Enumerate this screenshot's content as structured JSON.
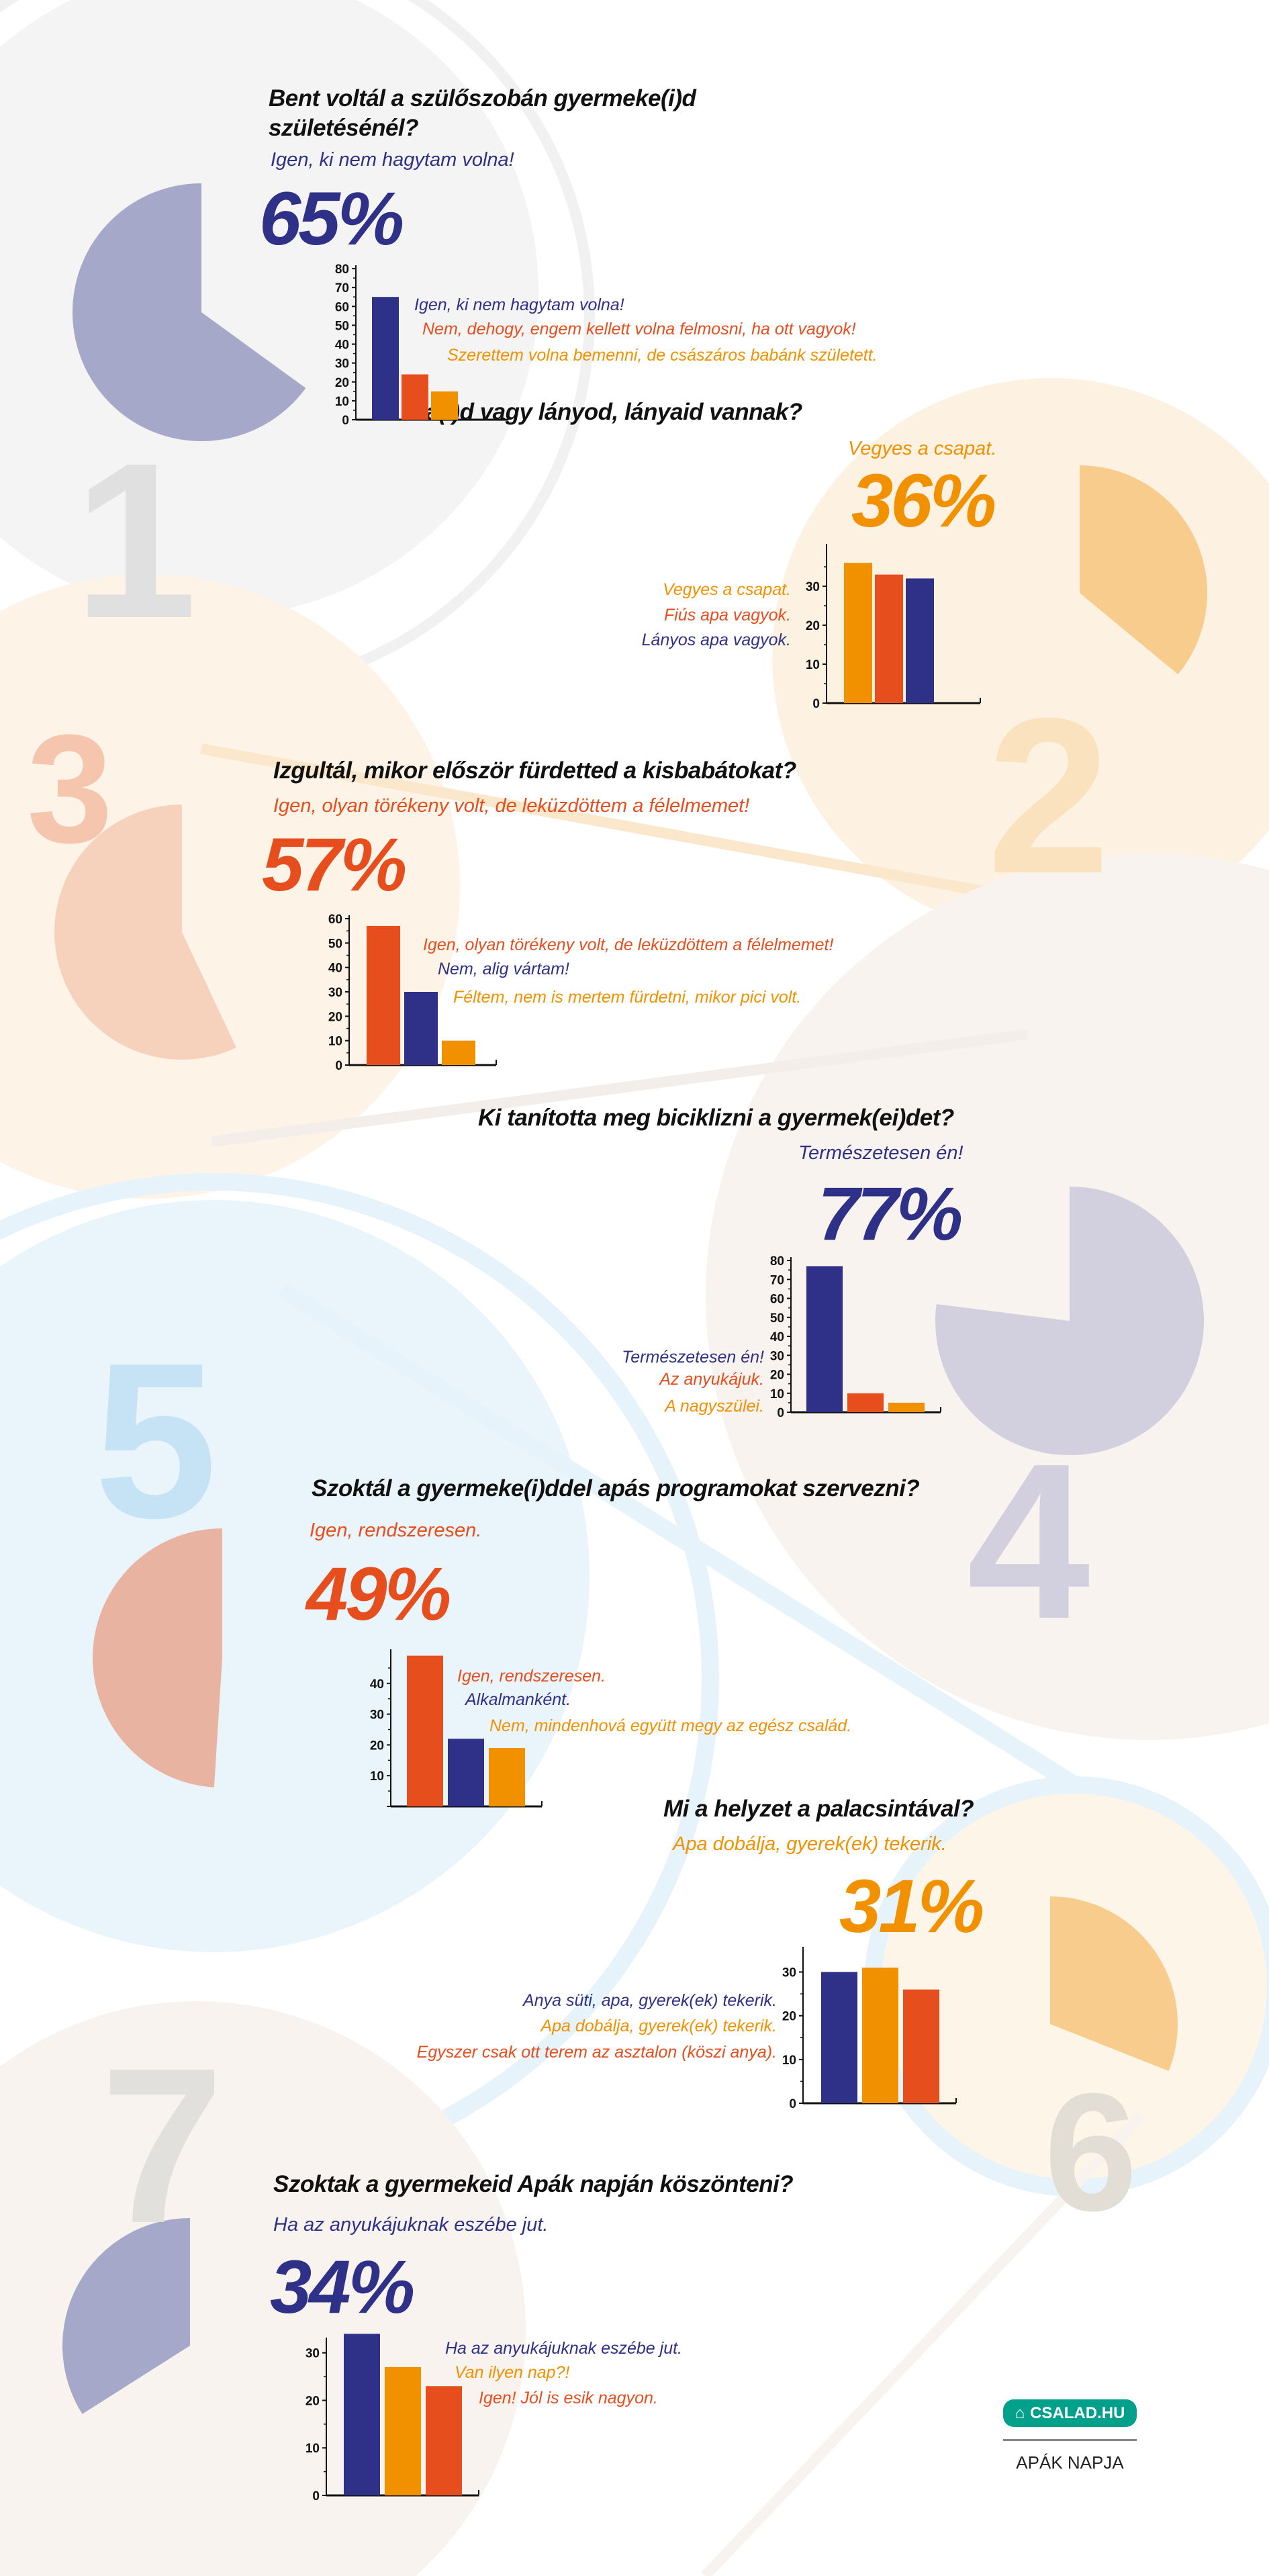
{
  "colors": {
    "navy": "#2e3187",
    "red": "#e64e1e",
    "orange": "#f29100",
    "teal": "#00a08a"
  },
  "section_numbers": [
    "1",
    "2",
    "3",
    "4",
    "5",
    "6",
    "7"
  ],
  "sections": [
    {
      "question_lines": [
        "Bent voltál a szülőszobán gyermeke(i)d",
        "születésénél?"
      ],
      "answer": "Igen, ki nem hagytam volna!",
      "percent": "65%",
      "percent_value": 65,
      "accent": "#2e3187",
      "chart": {
        "type": "bar",
        "values": [
          65,
          24,
          15
        ],
        "colors": [
          "#2e3187",
          "#e64e1e",
          "#f29100"
        ],
        "labels": [
          "Igen, ki nem hagytam volna!",
          "Nem, dehogy, engem kellett volna felmosni, ha ott vagyok!",
          "Szerettem volna bemenni, de császáros babánk született."
        ],
        "tick_labels": [
          "0",
          "10",
          "20",
          "30",
          "40",
          "50",
          "60",
          "70",
          "80"
        ],
        "ylim": [
          0,
          80
        ]
      }
    },
    {
      "question_lines": [
        "Fia(i)d vagy lányod, lányaid vannak?"
      ],
      "answer": "Vegyes a csapat.",
      "percent": "36%",
      "percent_value": 36,
      "accent": "#f29100",
      "chart": {
        "type": "bar",
        "values": [
          36,
          33,
          32
        ],
        "colors": [
          "#f29100",
          "#e64e1e",
          "#2e3187"
        ],
        "labels": [
          "Vegyes a csapat.",
          "Fiús apa vagyok.",
          "Lányos apa vagyok."
        ],
        "tick_labels": [
          "0",
          "10",
          "20",
          "30"
        ],
        "ylim": [
          0,
          40
        ]
      }
    },
    {
      "question_lines": [
        "Izgultál, mikor először fürdetted a kisbabátokat?"
      ],
      "answer": "Igen, olyan törékeny volt, de leküzdöttem a félelmemet!",
      "percent": "57%",
      "percent_value": 57,
      "accent": "#e64e1e",
      "chart": {
        "type": "bar",
        "values": [
          57,
          30,
          10
        ],
        "colors": [
          "#e64e1e",
          "#2e3187",
          "#f29100"
        ],
        "labels": [
          "Igen, olyan törékeny volt, de leküzdöttem a félelmemet!",
          "Nem, alig vártam!",
          "Féltem, nem is mertem fürdetni, mikor pici volt."
        ],
        "tick_labels": [
          "0",
          "10",
          "20",
          "30",
          "40",
          "50",
          "60"
        ],
        "ylim": [
          0,
          60
        ]
      }
    },
    {
      "question_lines": [
        "Ki tanította meg biciklizni a gyermek(ei)det?"
      ],
      "answer": "Természetesen én!",
      "percent": "77%",
      "percent_value": 77,
      "accent": "#2e3187",
      "chart": {
        "type": "bar",
        "values": [
          77,
          10,
          5
        ],
        "colors": [
          "#2e3187",
          "#e64e1e",
          "#f29100"
        ],
        "labels": [
          "Természetesen én!",
          "Az anyukájuk.",
          "A nagyszülei."
        ],
        "tick_labels": [
          "0",
          "10",
          "20",
          "30",
          "40",
          "50",
          "60",
          "70",
          "80"
        ],
        "ylim": [
          0,
          80
        ]
      }
    },
    {
      "question_lines": [
        "Szoktál a gyermeke(i)ddel apás programokat szervezni?"
      ],
      "answer": "Igen, rendszeresen.",
      "percent": "49%",
      "percent_value": 49,
      "accent": "#e64e1e",
      "chart": {
        "type": "bar",
        "values": [
          49,
          22,
          19
        ],
        "colors": [
          "#e64e1e",
          "#2e3187",
          "#f29100"
        ],
        "labels": [
          "Igen, rendszeresen.",
          "Alkalmanként.",
          "Nem, mindenhová együtt megy az egész család."
        ],
        "tick_labels": [
          "",
          "10",
          "20",
          "30",
          "40"
        ],
        "ylim": [
          0,
          50
        ]
      }
    },
    {
      "question_lines": [
        "Mi a helyzet a palacsintával?"
      ],
      "answer": "Apa dobálja, gyerek(ek) tekerik.",
      "percent": "31%",
      "percent_value": 31,
      "accent": "#f29100",
      "chart": {
        "type": "bar",
        "values": [
          30,
          31,
          26
        ],
        "colors": [
          "#2e3187",
          "#f29100",
          "#e64e1e"
        ],
        "labels": [
          "Anya süti, apa, gyerek(ek) tekerik.",
          "Apa dobálja, gyerek(ek) tekerik.",
          "Egyszer csak ott terem az asztalon (köszi anya)."
        ],
        "tick_labels": [
          "0",
          "10",
          "20",
          "30"
        ],
        "ylim": [
          0,
          35
        ]
      }
    },
    {
      "question_lines": [
        "Szoktak a gyermekeid Apák napján köszönteni?"
      ],
      "answer": "Ha az anyukájuknak eszébe jut.",
      "percent": "34%",
      "percent_value": 34,
      "accent": "#2e3187",
      "chart": {
        "type": "bar",
        "values": [
          34,
          27,
          23
        ],
        "colors": [
          "#2e3187",
          "#f29100",
          "#e64e1e"
        ],
        "labels": [
          "Ha az anyukájuknak eszébe jut.",
          "Van ilyen nap?!",
          "Igen! Jól is esik nagyon."
        ],
        "tick_labels": [
          "0",
          "10",
          "20",
          "30"
        ],
        "ylim": [
          0,
          32.5
        ]
      }
    }
  ],
  "footer": {
    "logo_text": "CSALAD.HU",
    "logo_icon": "family-house-icon",
    "caption": "APÁK NAPJA"
  }
}
